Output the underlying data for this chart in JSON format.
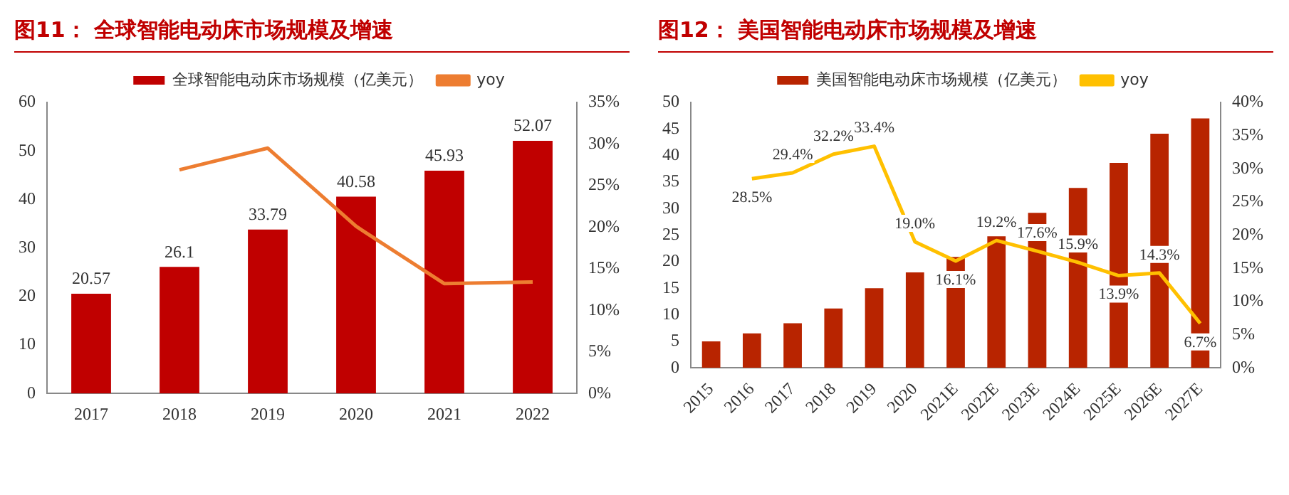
{
  "chart_data": [
    {
      "type": "bar",
      "title": "图11：  全球智能电动床市场规模及增速",
      "categories": [
        "2017",
        "2018",
        "2019",
        "2020",
        "2021",
        "2022"
      ],
      "series": [
        {
          "name": "全球智能电动床市场规模（亿美元）",
          "color": "#c00000",
          "values": [
            20.57,
            26.1,
            33.79,
            40.58,
            45.93,
            52.07
          ],
          "value_labels": [
            "20.57",
            "26.1",
            "33.79",
            "40.58",
            "45.93",
            "52.07"
          ]
        },
        {
          "name": "yoy",
          "type": "line",
          "axis": "y2",
          "color": "#ed7d31",
          "values": [
            null,
            26.9,
            29.5,
            20.1,
            13.2,
            13.4
          ]
        }
      ],
      "ylim": [
        0,
        60
      ],
      "yticks": [
        0,
        10,
        20,
        30,
        40,
        50,
        60
      ],
      "y2lim": [
        0,
        35
      ],
      "y2ticks": [
        {
          "value": 0,
          "label": "0%"
        },
        {
          "value": 5,
          "label": "5%"
        },
        {
          "value": 10,
          "label": "10%"
        },
        {
          "value": 15,
          "label": "15%"
        },
        {
          "value": 20,
          "label": "20%"
        },
        {
          "value": 25,
          "label": "25%"
        },
        {
          "value": 30,
          "label": "30%"
        },
        {
          "value": 35,
          "label": "35%"
        }
      ],
      "legend": "top",
      "grid": false,
      "marker": "none"
    },
    {
      "type": "bar",
      "title": "图12：  美国智能电动床市场规模及增速",
      "categories": [
        "2015",
        "2016",
        "2017",
        "2018",
        "2019",
        "2020",
        "2021E",
        "2022E",
        "2023E",
        "2024E",
        "2025E",
        "2026E",
        "2027E"
      ],
      "series": [
        {
          "name": "美国智能电动床市场规模（亿美元）",
          "color": "#b82400",
          "values": [
            5.0,
            6.5,
            8.4,
            11.2,
            15.0,
            18.0,
            20.9,
            24.8,
            29.2,
            33.9,
            38.6,
            44.1,
            47.0
          ]
        },
        {
          "name": "yoy",
          "type": "line",
          "axis": "y2",
          "color": "#ffc000",
          "values": [
            null,
            28.5,
            29.4,
            32.2,
            33.4,
            19.0,
            16.1,
            19.2,
            17.6,
            15.9,
            13.9,
            14.3,
            6.7
          ],
          "value_labels": [
            null,
            "28.5%",
            "29.4%",
            "32.2%",
            "33.4%",
            "19.0%",
            "16.1%",
            "19.2%",
            "17.6%",
            "15.9%",
            "13.9%",
            "14.3%",
            "6.7%"
          ]
        }
      ],
      "ylim": [
        0,
        50
      ],
      "yticks": [
        0,
        5,
        10,
        15,
        20,
        25,
        30,
        35,
        40,
        45,
        50
      ],
      "y2lim": [
        0,
        40
      ],
      "y2ticks": [
        {
          "value": 0,
          "label": "0%"
        },
        {
          "value": 5,
          "label": "5%"
        },
        {
          "value": 10,
          "label": "10%"
        },
        {
          "value": 15,
          "label": "15%"
        },
        {
          "value": 20,
          "label": "20%"
        },
        {
          "value": 25,
          "label": "25%"
        },
        {
          "value": 30,
          "label": "30%"
        },
        {
          "value": 35,
          "label": "35%"
        },
        {
          "value": 40,
          "label": "40%"
        }
      ],
      "legend": "top",
      "grid": false,
      "marker": "none"
    }
  ]
}
